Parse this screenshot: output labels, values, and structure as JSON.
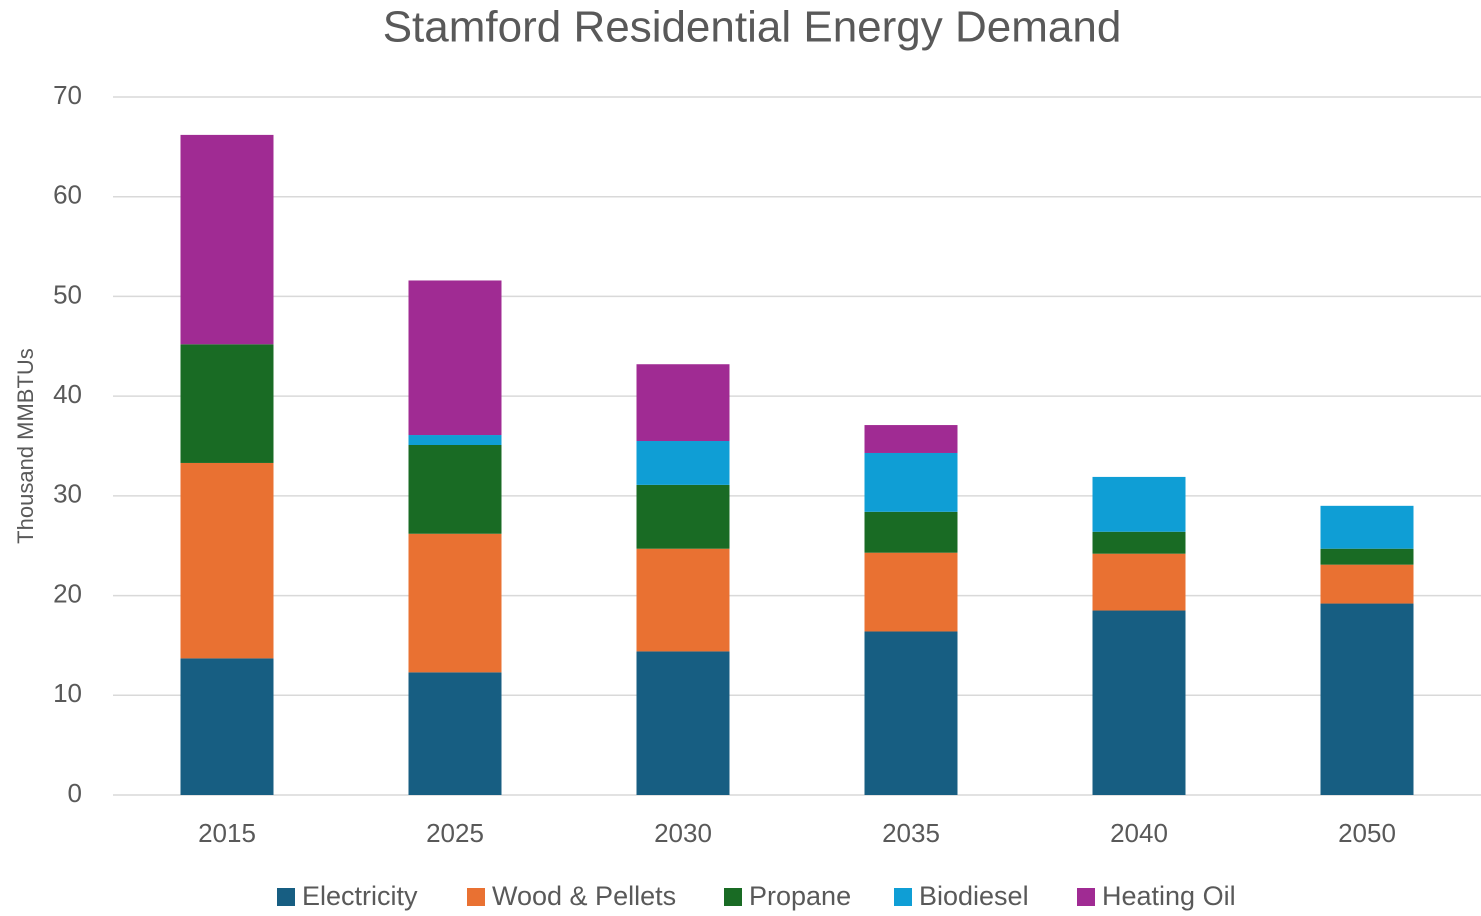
{
  "chart_data": {
    "type": "stacked_bar",
    "title": "Stamford Residential Energy Demand",
    "y_label": "Thousand MMBTUs",
    "categories": [
      "2015",
      "2025",
      "2030",
      "2035",
      "2040",
      "2050"
    ],
    "series": [
      {
        "name": "Electricity",
        "color": "#175e82",
        "values": [
          13.7,
          12.3,
          14.4,
          16.4,
          18.5,
          19.2
        ]
      },
      {
        "name": "Wood & Pellets",
        "color": "#e97132",
        "values": [
          19.6,
          13.9,
          10.3,
          7.9,
          5.7,
          3.9
        ]
      },
      {
        "name": "Propane",
        "color": "#196b24",
        "values": [
          11.9,
          8.9,
          6.4,
          4.1,
          2.2,
          1.6
        ]
      },
      {
        "name": "Biodiesel",
        "color": "#0f9ed5",
        "values": [
          0,
          1.0,
          4.4,
          5.9,
          5.5,
          4.3
        ]
      },
      {
        "name": "Heating Oil",
        "color": "#a02b93",
        "values": [
          21.0,
          15.5,
          7.7,
          2.8,
          0,
          0
        ]
      }
    ],
    "ylim": [
      0,
      70
    ],
    "yticks": [
      0,
      10,
      20,
      30,
      40,
      50,
      60,
      70
    ],
    "grid": true,
    "legend": "bottom"
  }
}
